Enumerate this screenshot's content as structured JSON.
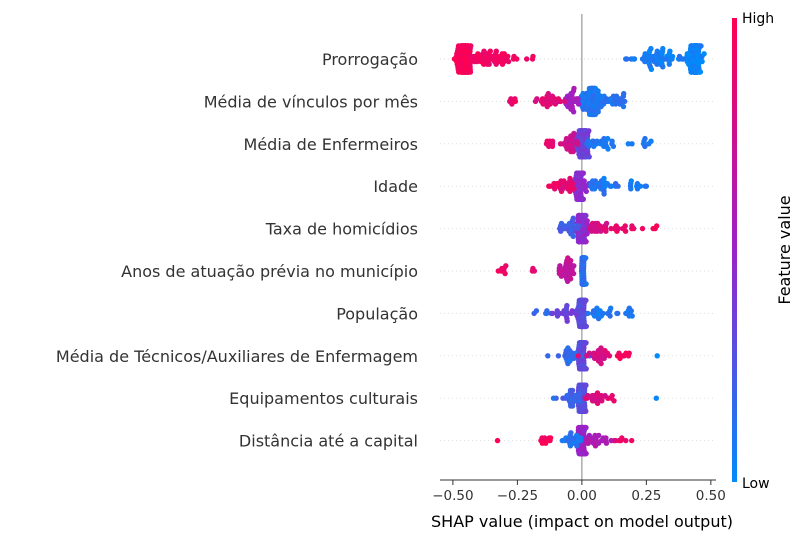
{
  "chart_data": {
    "type": "scatter",
    "subtype": "shap-beeswarm",
    "title": "",
    "xlabel": "SHAP value (impact on model output)",
    "ylabel": "",
    "xlim": [
      -0.55,
      0.52
    ],
    "xticks": [
      -0.5,
      -0.25,
      0.0,
      0.25,
      0.5
    ],
    "xtick_labels": [
      "−0.50",
      "−0.25",
      "0.00",
      "0.25",
      "0.50"
    ],
    "grid": false,
    "features": [
      "Prorrogação",
      "Média de vínculos por mês",
      "Média de Enfermeiros",
      "Idade",
      "Taxa de homicídios",
      "Anos de atuação prévia no município",
      "População",
      "Média de Técnicos/Auxiliares de Enfermagem",
      "Equipamentos culturais",
      "Distância até a capital"
    ],
    "colorbar": {
      "label": "Feature value",
      "high_label": "High",
      "low_label": "Low",
      "high_color": "#ff0052",
      "mid_color": "#9a22c8",
      "low_color": "#008bfb"
    },
    "points": [
      {
        "feature": "Prorrogação",
        "clusters": [
          {
            "center": -0.455,
            "spread": 0.025,
            "n": 120,
            "fv": 0.96
          },
          {
            "center": -0.35,
            "spread": 0.075,
            "n": 55,
            "fv": 0.93
          },
          {
            "center": -0.2,
            "spread": 0.02,
            "n": 3,
            "fv": 0.9
          },
          {
            "center": 0.44,
            "spread": 0.025,
            "n": 120,
            "fv": 0.05
          },
          {
            "center": 0.3,
            "spread": 0.075,
            "n": 55,
            "fv": 0.07
          },
          {
            "center": 0.2,
            "spread": 0.02,
            "n": 3,
            "fv": 0.1
          }
        ]
      },
      {
        "feature": "Média de vínculos por mês",
        "clusters": [
          {
            "center": 0.04,
            "spread": 0.04,
            "n": 90,
            "fv": 0.1
          },
          {
            "center": 0.13,
            "spread": 0.05,
            "n": 22,
            "fv": 0.12
          },
          {
            "center": -0.04,
            "spread": 0.04,
            "n": 30,
            "fv": 0.55
          },
          {
            "center": -0.13,
            "spread": 0.05,
            "n": 22,
            "fv": 0.85
          },
          {
            "center": -0.27,
            "spread": 0.02,
            "n": 6,
            "fv": 0.92
          }
        ]
      },
      {
        "feature": "Média de Enfermeiros",
        "clusters": [
          {
            "center": 0.0,
            "spread": 0.025,
            "n": 80,
            "fv": 0.35
          },
          {
            "center": 0.08,
            "spread": 0.06,
            "n": 25,
            "fv": 0.1
          },
          {
            "center": 0.22,
            "spread": 0.05,
            "n": 8,
            "fv": 0.08
          },
          {
            "center": -0.05,
            "spread": 0.03,
            "n": 25,
            "fv": 0.75
          },
          {
            "center": -0.13,
            "spread": 0.02,
            "n": 8,
            "fv": 0.9
          }
        ]
      },
      {
        "feature": "Idade",
        "clusters": [
          {
            "center": -0.01,
            "spread": 0.02,
            "n": 80,
            "fv": 0.45
          },
          {
            "center": 0.07,
            "spread": 0.05,
            "n": 28,
            "fv": 0.1
          },
          {
            "center": 0.2,
            "spread": 0.05,
            "n": 10,
            "fv": 0.08
          },
          {
            "center": -0.07,
            "spread": 0.035,
            "n": 25,
            "fv": 0.85
          },
          {
            "center": -0.11,
            "spread": 0.02,
            "n": 6,
            "fv": 0.9
          }
        ]
      },
      {
        "feature": "Taxa de homicídios",
        "clusters": [
          {
            "center": 0.0,
            "spread": 0.02,
            "n": 80,
            "fv": 0.45
          },
          {
            "center": -0.05,
            "spread": 0.03,
            "n": 25,
            "fv": 0.2
          },
          {
            "center": 0.07,
            "spread": 0.04,
            "n": 22,
            "fv": 0.8
          },
          {
            "center": 0.17,
            "spread": 0.05,
            "n": 15,
            "fv": 0.9
          },
          {
            "center": 0.29,
            "spread": 0.03,
            "n": 3,
            "fv": 0.95
          }
        ]
      },
      {
        "feature": "Anos de atuação prévia no município",
        "clusters": [
          {
            "center": 0.005,
            "spread": 0.008,
            "n": 70,
            "fv": 0.15
          },
          {
            "center": -0.06,
            "spread": 0.025,
            "n": 30,
            "fv": 0.7
          },
          {
            "center": -0.2,
            "spread": 0.02,
            "n": 3,
            "fv": 0.9
          },
          {
            "center": -0.3,
            "spread": 0.03,
            "n": 7,
            "fv": 0.92
          }
        ]
      },
      {
        "feature": "População",
        "clusters": [
          {
            "center": 0.0,
            "spread": 0.015,
            "n": 90,
            "fv": 0.3
          },
          {
            "center": 0.07,
            "spread": 0.06,
            "n": 20,
            "fv": 0.1
          },
          {
            "center": -0.07,
            "spread": 0.05,
            "n": 20,
            "fv": 0.35
          },
          {
            "center": 0.19,
            "spread": 0.04,
            "n": 8,
            "fv": 0.1
          },
          {
            "center": -0.16,
            "spread": 0.03,
            "n": 5,
            "fv": 0.15
          }
        ]
      },
      {
        "feature": "Média de Técnicos/Auxiliares de Enfermagem",
        "clusters": [
          {
            "center": 0.0,
            "spread": 0.015,
            "n": 85,
            "fv": 0.3
          },
          {
            "center": -0.06,
            "spread": 0.04,
            "n": 20,
            "fv": 0.15
          },
          {
            "center": 0.08,
            "spread": 0.05,
            "n": 25,
            "fv": 0.8
          },
          {
            "center": 0.17,
            "spread": 0.04,
            "n": 8,
            "fv": 0.95
          },
          {
            "center": 0.29,
            "spread": 0.01,
            "n": 1,
            "fv": 0.05
          }
        ]
      },
      {
        "feature": "Equipamentos culturais",
        "clusters": [
          {
            "center": 0.0,
            "spread": 0.015,
            "n": 85,
            "fv": 0.3
          },
          {
            "center": -0.04,
            "spread": 0.03,
            "n": 25,
            "fv": 0.2
          },
          {
            "center": 0.05,
            "spread": 0.04,
            "n": 20,
            "fv": 0.8
          },
          {
            "center": 0.13,
            "spread": 0.03,
            "n": 4,
            "fv": 0.9
          },
          {
            "center": 0.29,
            "spread": 0.01,
            "n": 1,
            "fv": 0.05
          },
          {
            "center": -0.12,
            "spread": 0.01,
            "n": 1,
            "fv": 0.1
          }
        ]
      },
      {
        "feature": "Distância até a capital",
        "clusters": [
          {
            "center": 0.0,
            "spread": 0.02,
            "n": 80,
            "fv": 0.5
          },
          {
            "center": -0.04,
            "spread": 0.03,
            "n": 20,
            "fv": 0.1
          },
          {
            "center": 0.06,
            "spread": 0.04,
            "n": 22,
            "fv": 0.6
          },
          {
            "center": -0.14,
            "spread": 0.03,
            "n": 10,
            "fv": 0.95
          },
          {
            "center": 0.15,
            "spread": 0.03,
            "n": 5,
            "fv": 0.9
          },
          {
            "center": -0.33,
            "spread": 0.01,
            "n": 1,
            "fv": 0.95
          },
          {
            "center": 0.2,
            "spread": 0.01,
            "n": 1,
            "fv": 0.95
          }
        ]
      }
    ]
  }
}
